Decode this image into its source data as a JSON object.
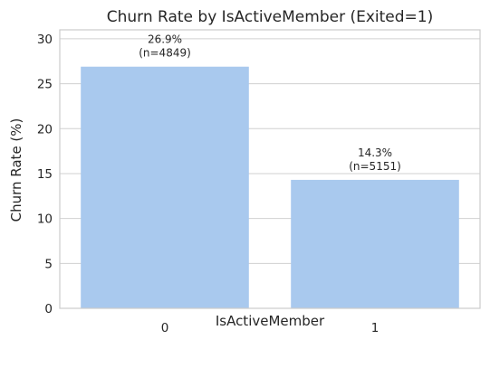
{
  "chart_data": {
    "type": "bar",
    "title": "Churn Rate by IsActiveMember (Exited=1)",
    "xlabel": "IsActiveMember",
    "ylabel": "Churn Rate (%)",
    "categories": [
      "0",
      "1"
    ],
    "values": [
      26.9,
      14.3
    ],
    "data_labels": [
      {
        "rate": "26.9%",
        "count": "(n=4849)"
      },
      {
        "rate": "14.3%",
        "count": "(n=5151)"
      }
    ],
    "ylim": [
      0,
      31
    ],
    "yticks": [
      0,
      5,
      10,
      15,
      20,
      25,
      30
    ],
    "grid": true,
    "legend": "none",
    "colors": {
      "bar": "#a9c9ee",
      "grid": "#d0d0d0",
      "spine": "#cccccc",
      "text": "#262626"
    }
  }
}
